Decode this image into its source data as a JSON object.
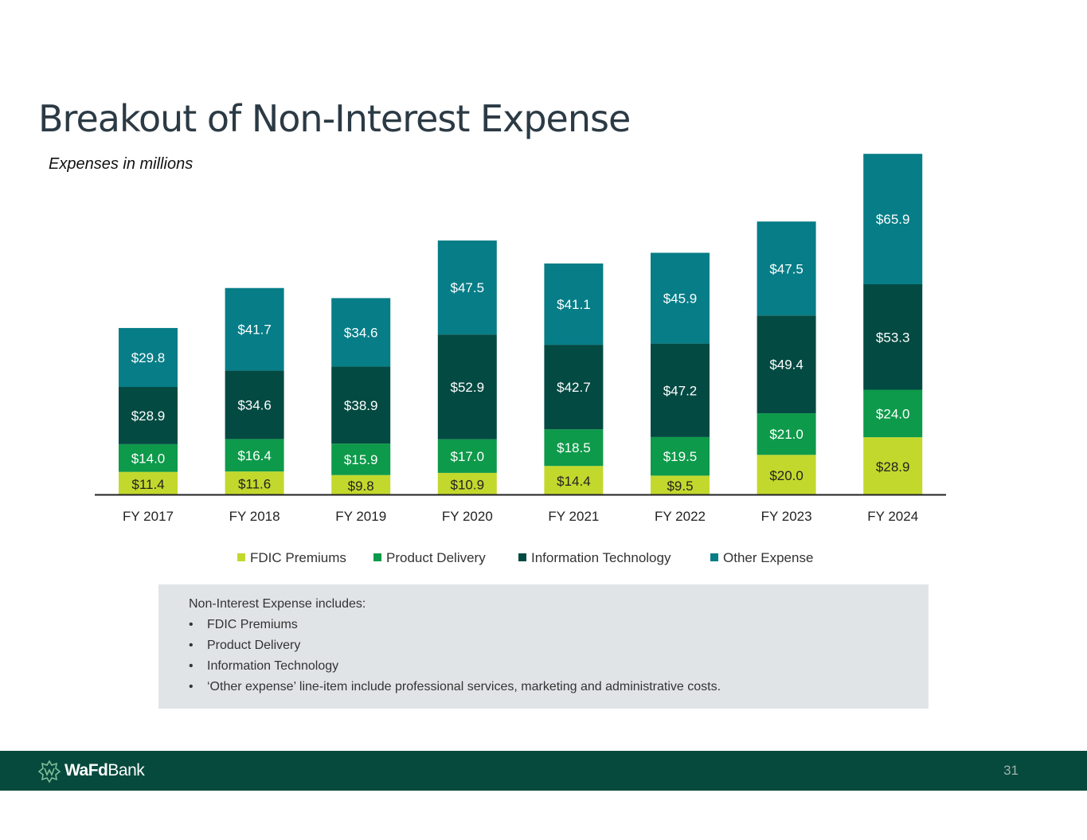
{
  "slide": {
    "title": "Breakout of Non-Interest Expense",
    "subtitle": "Expenses in millions",
    "page_number": "31"
  },
  "chart_data": {
    "type": "bar",
    "stacked": true,
    "categories": [
      "FY 2017",
      "FY 2018",
      "FY 2019",
      "FY 2020",
      "FY 2021",
      "FY 2022",
      "FY 2023",
      "FY 2024"
    ],
    "series": [
      {
        "name": "FDIC Premiums",
        "color": "#c3d82d",
        "values": [
          11.4,
          11.6,
          9.8,
          10.9,
          14.4,
          9.5,
          20.0,
          28.9
        ]
      },
      {
        "name": "Product Delivery",
        "color": "#0d9a4a",
        "values": [
          14.0,
          16.4,
          15.9,
          17.0,
          18.5,
          19.5,
          21.0,
          24.0
        ]
      },
      {
        "name": "Information Technology",
        "color": "#034a42",
        "values": [
          28.9,
          34.6,
          38.9,
          52.9,
          42.7,
          47.2,
          49.4,
          53.3
        ]
      },
      {
        "name": "Other Expense",
        "color": "#067d87",
        "values": [
          29.8,
          41.7,
          34.6,
          47.5,
          41.1,
          45.9,
          47.5,
          65.9
        ]
      }
    ],
    "value_prefix": "$",
    "ylim": [
      0,
      175
    ],
    "legend_position": "bottom",
    "grid": false
  },
  "notes": {
    "intro": "Non-Interest Expense includes:",
    "items": [
      "FDIC Premiums",
      "Product Delivery",
      "Information Technology",
      "‘Other expense’ line-item include professional services, marketing and administrative costs."
    ]
  },
  "footer": {
    "brand_bold": "WaFd",
    "brand_regular": "Bank",
    "logo_icon": "wafd-logo-icon"
  }
}
